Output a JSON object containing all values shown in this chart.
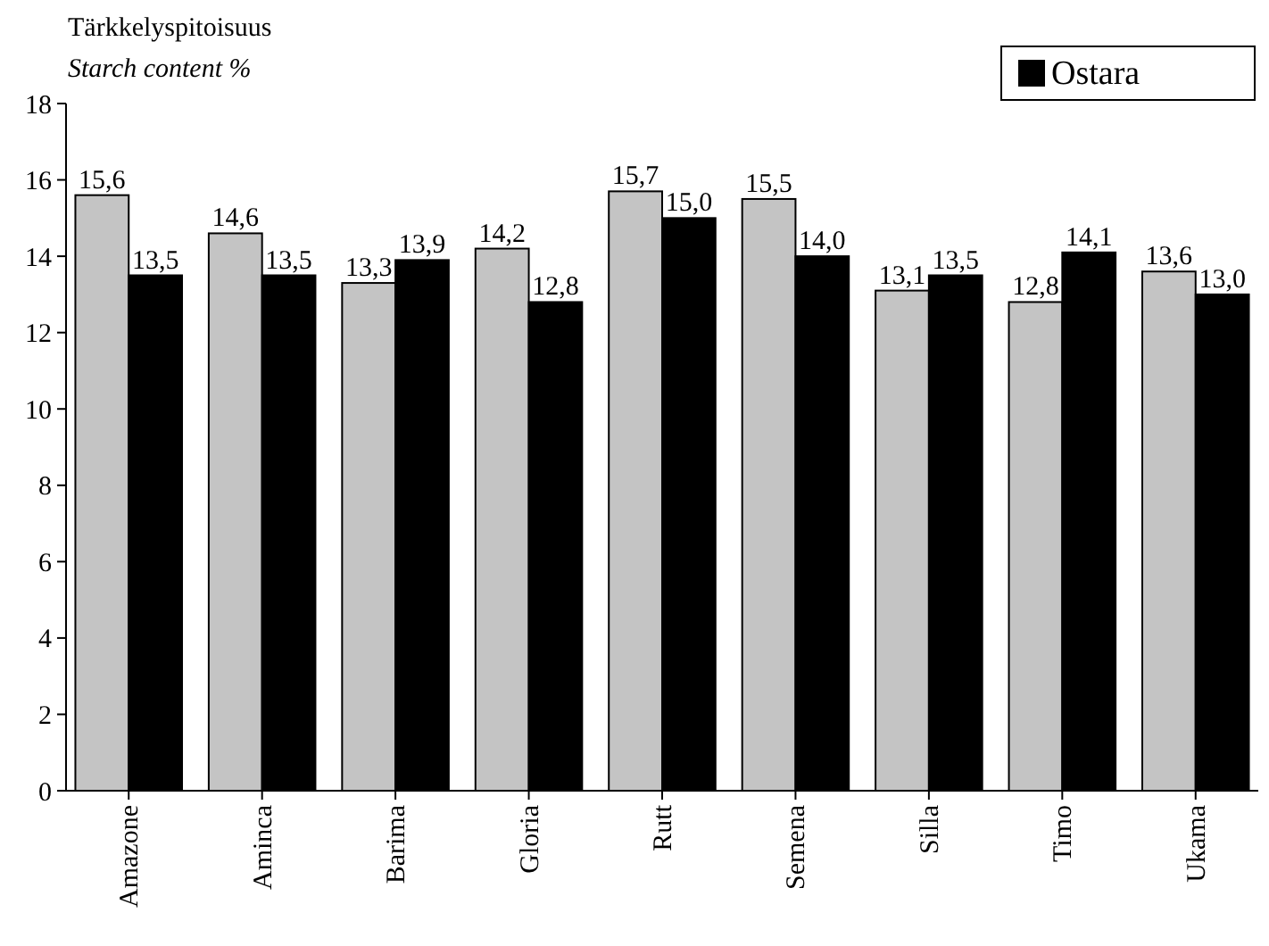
{
  "chart_data": {
    "type": "bar",
    "title": "Tärkkelyspitoisuus",
    "ylabel": "Starch content  %",
    "categories": [
      "Amazone",
      "Aminca",
      "Barima",
      "Gloria",
      "Rutt",
      "Semena",
      "Silla",
      "Timo",
      "Ukama"
    ],
    "series": [
      {
        "color": "#c4c4c4",
        "values": [
          15.6,
          14.6,
          13.3,
          14.2,
          15.7,
          15.5,
          13.1,
          12.8,
          13.6
        ],
        "value_labels": [
          "15,6",
          "14,6",
          "13,3",
          "14,2",
          "15,7",
          "15,5",
          "13,1",
          "12,8",
          "13,6"
        ]
      },
      {
        "name": "Ostara",
        "color": "#000000",
        "values": [
          13.5,
          13.5,
          13.9,
          12.8,
          15.0,
          14.0,
          13.5,
          14.1,
          13.0
        ],
        "value_labels": [
          "13,5",
          "13,5",
          "13,9",
          "12,8",
          "15,0",
          "14,0",
          "13,5",
          "14,1",
          "13,0"
        ]
      }
    ],
    "ylim": [
      0,
      18
    ],
    "yticks": [
      0,
      2,
      4,
      6,
      8,
      10,
      12,
      14,
      16,
      18
    ],
    "legend": "top right"
  }
}
